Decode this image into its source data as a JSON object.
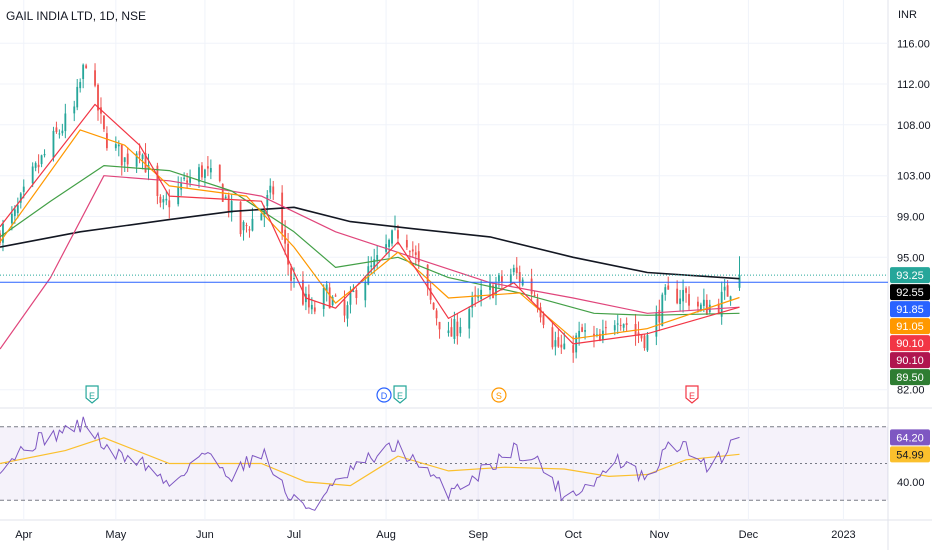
{
  "header": {
    "title": "GAIL INDIA LTD, 1D, NSE"
  },
  "currency": "INR",
  "colors": {
    "up": "#26a69a",
    "down": "#ef5350",
    "ema_black": "#131722",
    "ema_green": "#43a047",
    "ema_red": "#e0457b",
    "ema_orange": "#ff9800",
    "ema_pinkred": "#f23645",
    "rsi": "#7e57c2",
    "rsi_ma": "#fbc02d",
    "hline": "#2962ff",
    "grid": "#f0f3fa",
    "axis_text": "#131722"
  },
  "events": [
    {
      "date": "2022-04-24",
      "labels": [
        "E"
      ],
      "colors": [
        "#26a69a"
      ]
    },
    {
      "date": "2022-08-03",
      "labels": [
        "D",
        "E"
      ],
      "colors": [
        "#2962ff",
        "#26a69a"
      ]
    },
    {
      "date": "2022-09-08",
      "labels": [
        "S"
      ],
      "colors": [
        "#ff9800"
      ]
    },
    {
      "date": "2022-11-12",
      "labels": [
        "E"
      ],
      "colors": [
        "#f23645"
      ]
    }
  ],
  "chart_data": [
    {
      "type": "candlestick",
      "title": "GAIL INDIA LTD, 1D, NSE",
      "x_range": [
        "2022-03-24",
        "2023-01-17"
      ],
      "ylim": [
        80.5,
        117.5
      ],
      "y_ticks": [
        "116.00",
        "112.00",
        "108.00",
        "103.00",
        "99.00",
        "95.00",
        "82.00"
      ],
      "x_ticks": [
        "Apr",
        "May",
        "Jun",
        "Jul",
        "Aug",
        "Sep",
        "Oct",
        "Nov",
        "Dec",
        "2023"
      ],
      "x_tick_dates": [
        "2022-04-01",
        "2022-05-02",
        "2022-06-01",
        "2022-07-01",
        "2022-08-01",
        "2022-09-01",
        "2022-10-03",
        "2022-11-01",
        "2022-12-01",
        "2023-01-02"
      ],
      "horizontal_line": 92.55,
      "close_anchors": [
        [
          "2022-03-24",
          97.5
        ],
        [
          "2022-03-29",
          99.0
        ],
        [
          "2022-04-04",
          103.0
        ],
        [
          "2022-04-11",
          106.5
        ],
        [
          "2022-04-18",
          109.5
        ],
        [
          "2022-04-22",
          114.5
        ],
        [
          "2022-04-28",
          107.0
        ],
        [
          "2022-05-05",
          104.5
        ],
        [
          "2022-05-10",
          106.0
        ],
        [
          "2022-05-17",
          99.5
        ],
        [
          "2022-05-24",
          102.0
        ],
        [
          "2022-05-31",
          103.5
        ],
        [
          "2022-06-06",
          102.0
        ],
        [
          "2022-06-13",
          97.5
        ],
        [
          "2022-06-20",
          99.5
        ],
        [
          "2022-06-24",
          101.5
        ],
        [
          "2022-06-30",
          93.0
        ],
        [
          "2022-07-07",
          89.5
        ],
        [
          "2022-07-12",
          91.5
        ],
        [
          "2022-07-18",
          89.0
        ],
        [
          "2022-07-22",
          92.0
        ],
        [
          "2022-07-29",
          94.5
        ],
        [
          "2022-08-05",
          97.5
        ],
        [
          "2022-08-09",
          96.5
        ],
        [
          "2022-08-16",
          90.5
        ],
        [
          "2022-08-22",
          87.0
        ],
        [
          "2022-08-29",
          90.0
        ],
        [
          "2022-09-06",
          92.0
        ],
        [
          "2022-09-13",
          93.5
        ],
        [
          "2022-09-20",
          91.5
        ],
        [
          "2022-09-26",
          87.0
        ],
        [
          "2022-09-30",
          85.5
        ],
        [
          "2022-10-06",
          87.5
        ],
        [
          "2022-10-12",
          86.5
        ],
        [
          "2022-10-18",
          89.5
        ],
        [
          "2022-10-24",
          87.5
        ],
        [
          "2022-10-28",
          87.0
        ],
        [
          "2022-11-03",
          91.0
        ],
        [
          "2022-11-09",
          91.5
        ],
        [
          "2022-11-15",
          90.0
        ],
        [
          "2022-11-21",
          90.5
        ],
        [
          "2022-11-25",
          92.0
        ],
        [
          "2022-11-28",
          93.25
        ]
      ],
      "last_bar": {
        "date": "2022-11-28",
        "open": 92.0,
        "high": 95.1,
        "low": 91.7,
        "close": 93.25
      },
      "right_axis_labels": [
        {
          "value": 93.25,
          "text": "93.25",
          "color": "#26a69a"
        },
        {
          "value": 92.55,
          "text": "92.55",
          "color": "#000000"
        },
        {
          "value": 91.85,
          "text": "91.85",
          "color": "#2962ff"
        },
        {
          "value": 91.05,
          "text": "91.05",
          "color": "#ff9800"
        },
        {
          "value": 90.1,
          "text": "90.10",
          "color": "#f23645"
        },
        {
          "value": 90.1,
          "text": "90.10",
          "color": "#b0154f"
        },
        {
          "value": 89.5,
          "text": "89.50",
          "color": "#2e7d32"
        }
      ],
      "series": [
        {
          "type": "ema",
          "period": 200,
          "color": "#131722",
          "points": [
            [
              "2022-03-24",
              96.0
            ],
            [
              "2022-04-20",
              97.5
            ],
            [
              "2022-05-20",
              98.7
            ],
            [
              "2022-06-10",
              99.5
            ],
            [
              "2022-07-01",
              99.9
            ],
            [
              "2022-07-20",
              98.5
            ],
            [
              "2022-08-10",
              97.8
            ],
            [
              "2022-09-05",
              97.0
            ],
            [
              "2022-10-03",
              95.0
            ],
            [
              "2022-10-28",
              93.5
            ],
            [
              "2022-11-28",
              92.9
            ]
          ]
        },
        {
          "type": "ema",
          "period": 50,
          "color": "#e0457b",
          "points": [
            [
              "2022-03-24",
              86.0
            ],
            [
              "2022-04-10",
              93.0
            ],
            [
              "2022-04-28",
              103.0
            ],
            [
              "2022-05-20",
              102.5
            ],
            [
              "2022-06-20",
              101.0
            ],
            [
              "2022-07-15",
              97.5
            ],
            [
              "2022-08-10",
              95.0
            ],
            [
              "2022-09-05",
              92.5
            ],
            [
              "2022-10-03",
              91.0
            ],
            [
              "2022-10-28",
              89.5
            ],
            [
              "2022-11-28",
              90.1
            ]
          ]
        },
        {
          "type": "ema",
          "period": 20,
          "color": "#43a047",
          "points": [
            [
              "2022-03-24",
              97.0
            ],
            [
              "2022-04-10",
              100.5
            ],
            [
              "2022-04-28",
              104.0
            ],
            [
              "2022-05-20",
              103.5
            ],
            [
              "2022-06-10",
              101.5
            ],
            [
              "2022-07-01",
              97.5
            ],
            [
              "2022-07-15",
              94.0
            ],
            [
              "2022-08-05",
              95.0
            ],
            [
              "2022-08-22",
              93.0
            ],
            [
              "2022-09-15",
              91.5
            ],
            [
              "2022-10-10",
              89.5
            ],
            [
              "2022-10-28",
              89.3
            ],
            [
              "2022-11-28",
              89.5
            ]
          ]
        },
        {
          "type": "ema",
          "period": 10,
          "color": "#ff9800",
          "points": [
            [
              "2022-03-24",
              96.5
            ],
            [
              "2022-04-20",
              107.5
            ],
            [
              "2022-05-05",
              106.0
            ],
            [
              "2022-05-20",
              102.0
            ],
            [
              "2022-06-15",
              101.0
            ],
            [
              "2022-07-01",
              96.0
            ],
            [
              "2022-07-15",
              90.5
            ],
            [
              "2022-08-05",
              95.5
            ],
            [
              "2022-08-22",
              91.0
            ],
            [
              "2022-09-15",
              91.5
            ],
            [
              "2022-10-03",
              87.0
            ],
            [
              "2022-10-28",
              88.0
            ],
            [
              "2022-11-28",
              91.05
            ]
          ]
        },
        {
          "type": "ema",
          "period": 5,
          "color": "#f23645",
          "points": [
            [
              "2022-03-24",
              98.0
            ],
            [
              "2022-04-25",
              110.0
            ],
            [
              "2022-05-10",
              106.0
            ],
            [
              "2022-05-20",
              101.0
            ],
            [
              "2022-06-20",
              100.5
            ],
            [
              "2022-07-05",
              91.0
            ],
            [
              "2022-07-15",
              90.0
            ],
            [
              "2022-08-05",
              96.5
            ],
            [
              "2022-08-22",
              89.0
            ],
            [
              "2022-09-13",
              92.5
            ],
            [
              "2022-10-03",
              86.5
            ],
            [
              "2022-10-28",
              87.5
            ],
            [
              "2022-11-28",
              90.1
            ]
          ]
        }
      ]
    },
    {
      "type": "line",
      "title": "RSI",
      "ylim": [
        22,
        78
      ],
      "y_ticks": [
        "40.00"
      ],
      "bands": [
        70,
        50,
        30
      ],
      "series": [
        {
          "name": "RSI",
          "color": "#7e57c2",
          "points": [
            [
              "2022-03-24",
              49
            ],
            [
              "2022-04-05",
              62
            ],
            [
              "2022-04-22",
              72
            ],
            [
              "2022-04-30",
              55
            ],
            [
              "2022-05-10",
              52
            ],
            [
              "2022-05-20",
              38
            ],
            [
              "2022-05-31",
              56
            ],
            [
              "2022-06-10",
              44
            ],
            [
              "2022-06-20",
              57
            ],
            [
              "2022-06-30",
              30
            ],
            [
              "2022-07-07",
              26
            ],
            [
              "2022-07-15",
              38
            ],
            [
              "2022-07-22",
              48
            ],
            [
              "2022-08-05",
              60
            ],
            [
              "2022-08-12",
              48
            ],
            [
              "2022-08-22",
              35
            ],
            [
              "2022-09-01",
              44
            ],
            [
              "2022-09-13",
              58
            ],
            [
              "2022-09-22",
              50
            ],
            [
              "2022-09-30",
              32
            ],
            [
              "2022-10-10",
              40
            ],
            [
              "2022-10-18",
              52
            ],
            [
              "2022-10-28",
              40
            ],
            [
              "2022-11-05",
              62
            ],
            [
              "2022-11-12",
              56
            ],
            [
              "2022-11-18",
              48
            ],
            [
              "2022-11-24",
              58
            ],
            [
              "2022-11-28",
              64.2
            ]
          ]
        },
        {
          "name": "RSI-based MA",
          "color": "#fbc02d",
          "points": [
            [
              "2022-03-24",
              50
            ],
            [
              "2022-04-15",
              57
            ],
            [
              "2022-04-28",
              64
            ],
            [
              "2022-05-20",
              50
            ],
            [
              "2022-06-20",
              50
            ],
            [
              "2022-07-05",
              40
            ],
            [
              "2022-07-20",
              38
            ],
            [
              "2022-08-05",
              54
            ],
            [
              "2022-08-22",
              46
            ],
            [
              "2022-09-10",
              48
            ],
            [
              "2022-09-30",
              47
            ],
            [
              "2022-10-15",
              43
            ],
            [
              "2022-10-28",
              44
            ],
            [
              "2022-11-10",
              52
            ],
            [
              "2022-11-28",
              54.99
            ]
          ]
        }
      ],
      "right_axis_labels": [
        {
          "value": 64.2,
          "text": "64.20",
          "color": "#7e57c2"
        },
        {
          "value": 54.99,
          "text": "54.99",
          "color": "#fbc02d"
        }
      ]
    }
  ]
}
